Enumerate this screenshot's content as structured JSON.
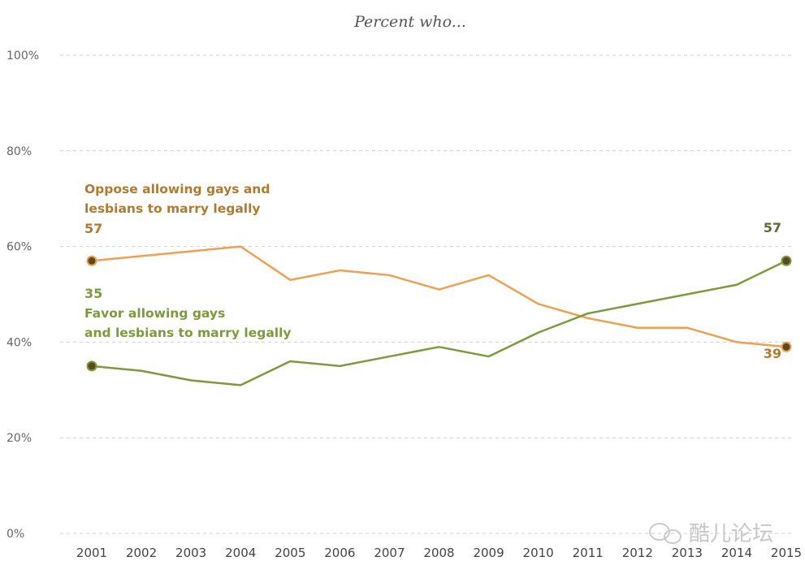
{
  "chart_data": {
    "type": "line",
    "subtitle": "Percent who...",
    "x": [
      2001,
      2002,
      2003,
      2004,
      2005,
      2006,
      2007,
      2008,
      2009,
      2010,
      2011,
      2012,
      2013,
      2014,
      2015
    ],
    "x_tick_labels": [
      "2001",
      "2002",
      "2003",
      "2004",
      "2005",
      "2006",
      "2007",
      "2008",
      "2009",
      "2010",
      "2011",
      "2012",
      "2013",
      "2014",
      "2015"
    ],
    "ylim": [
      0,
      100
    ],
    "y_ticks": [
      0,
      20,
      40,
      60,
      80,
      100
    ],
    "y_tick_labels": [
      "0%",
      "20%",
      "40%",
      "60%",
      "80%",
      "100%"
    ],
    "grid": true,
    "series": [
      {
        "name": "Oppose allowing gays and lesbians to marry legally",
        "label_lines": [
          "Oppose allowing gays and",
          "lesbians to marry legally"
        ],
        "color": "#f0a050",
        "text_color": "#b07a30",
        "values": [
          57,
          58,
          59,
          60,
          53,
          55,
          54,
          51,
          54,
          48,
          45,
          43,
          43,
          40,
          39
        ],
        "start_label": "57",
        "end_label": "39"
      },
      {
        "name": "Favor allowing gays and lesbians to marry legally",
        "label_lines": [
          "Favor allowing gays",
          "and lesbians to marry legally"
        ],
        "color": "#7c9a3e",
        "text_color": "#7c9a3e",
        "values": [
          35,
          34,
          32,
          31,
          36,
          35,
          37,
          39,
          37,
          42,
          46,
          48,
          50,
          52,
          57
        ],
        "start_label": "35",
        "end_label": "57"
      }
    ],
    "marker_fill": "#5a4a20"
  },
  "watermark": "酷儿论坛"
}
